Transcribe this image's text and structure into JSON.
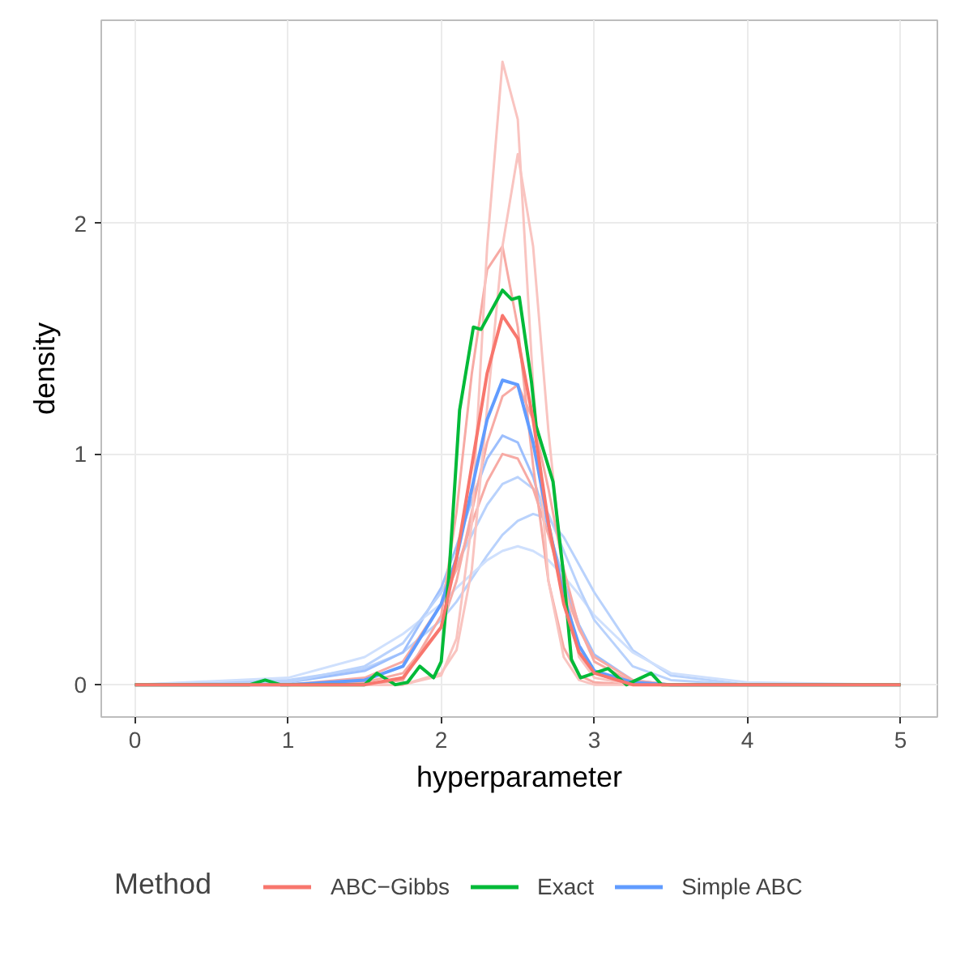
{
  "chart_data": {
    "type": "line",
    "xlabel": "hyperparameter",
    "ylabel": "density",
    "legend_title": "Method",
    "legend": "bottom",
    "grid": true,
    "xlim": [
      -0.22,
      5.24
    ],
    "ylim": [
      -0.14,
      2.88
    ],
    "xticks": [
      0,
      1,
      2,
      3,
      4,
      5
    ],
    "yticks": [
      0,
      1,
      2
    ],
    "x": [
      0,
      1,
      1.5,
      1.75,
      2,
      2.1,
      2.2,
      2.3,
      2.4,
      2.5,
      2.6,
      2.7,
      2.8,
      2.9,
      3,
      3.25,
      3.5,
      4,
      5
    ],
    "series": [
      {
        "name": "ABC−Gibbs",
        "color": "#f8766d",
        "values": [
          0,
          0,
          0,
          0.03,
          0.25,
          0.55,
          0.95,
          1.35,
          1.6,
          1.5,
          1.15,
          0.7,
          0.35,
          0.14,
          0.05,
          0,
          0,
          0,
          0
        ]
      },
      {
        "name": "Exact",
        "color": "#00ba38",
        "x": [
          0,
          0.75,
          0.85,
          0.95,
          1.5,
          1.58,
          1.7,
          1.78,
          1.86,
          1.95,
          2.0,
          2.05,
          2.12,
          2.21,
          2.26,
          2.4,
          2.46,
          2.51,
          2.59,
          2.62,
          2.73,
          2.8,
          2.85,
          2.91,
          3.09,
          3.21,
          3.37,
          3.44,
          5
        ],
        "values": [
          0,
          0,
          0.02,
          0,
          0,
          0.05,
          0,
          0.01,
          0.08,
          0.03,
          0.1,
          0.47,
          1.19,
          1.55,
          1.54,
          1.71,
          1.67,
          1.68,
          1.31,
          1.12,
          0.88,
          0.47,
          0.11,
          0.03,
          0.07,
          0,
          0.05,
          0,
          0
        ]
      },
      {
        "name": "Simple ABC",
        "color": "#619cff",
        "values": [
          0,
          0,
          0.02,
          0.08,
          0.35,
          0.55,
          0.85,
          1.15,
          1.32,
          1.3,
          1.05,
          0.7,
          0.38,
          0.17,
          0.06,
          0.01,
          0,
          0,
          0
        ]
      },
      {
        "color": "#f9c4c0",
        "values": [
          0,
          0,
          0,
          0,
          0.04,
          0.2,
          0.7,
          1.9,
          2.7,
          2.45,
          1.3,
          0.45,
          0.12,
          0.02,
          0,
          0,
          0,
          0,
          0
        ]
      },
      {
        "color": "#f9c4c0",
        "values": [
          0,
          0,
          0,
          0,
          0.05,
          0.15,
          0.5,
          1.2,
          1.9,
          2.3,
          1.9,
          1.1,
          0.45,
          0.12,
          0.03,
          0,
          0,
          0,
          0
        ]
      },
      {
        "color": "#f7aaa4",
        "values": [
          0,
          0,
          0.01,
          0.05,
          0.25,
          0.45,
          0.75,
          1.05,
          1.25,
          1.3,
          1.15,
          0.85,
          0.5,
          0.25,
          0.1,
          0.01,
          0,
          0,
          0
        ]
      },
      {
        "color": "#f7aaa4",
        "values": [
          0,
          0,
          0.03,
          0.1,
          0.35,
          0.5,
          0.7,
          0.88,
          1.0,
          0.98,
          0.85,
          0.65,
          0.42,
          0.24,
          0.12,
          0.02,
          0,
          0,
          0
        ]
      },
      {
        "color": "#f7aaa4",
        "values": [
          0,
          0,
          0,
          0.02,
          0.3,
          0.75,
          1.35,
          1.8,
          1.9,
          1.55,
          0.95,
          0.45,
          0.16,
          0.04,
          0.01,
          0,
          0,
          0,
          0
        ]
      },
      {
        "color": "#b9d2fc",
        "values": [
          0,
          0.01,
          0.08,
          0.18,
          0.4,
          0.52,
          0.65,
          0.78,
          0.87,
          0.9,
          0.85,
          0.74,
          0.58,
          0.42,
          0.28,
          0.08,
          0.02,
          0,
          0
        ]
      },
      {
        "color": "#cfe0fd",
        "values": [
          0,
          0.03,
          0.12,
          0.22,
          0.35,
          0.42,
          0.48,
          0.54,
          0.58,
          0.6,
          0.58,
          0.54,
          0.47,
          0.39,
          0.3,
          0.14,
          0.05,
          0.01,
          0
        ]
      },
      {
        "color": "#9dbffd",
        "values": [
          0,
          0.01,
          0.06,
          0.14,
          0.42,
          0.6,
          0.8,
          0.98,
          1.08,
          1.05,
          0.9,
          0.68,
          0.45,
          0.26,
          0.13,
          0.02,
          0,
          0,
          0
        ]
      },
      {
        "color": "#b9d2fc",
        "values": [
          0,
          0.02,
          0.07,
          0.14,
          0.28,
          0.36,
          0.46,
          0.56,
          0.65,
          0.71,
          0.74,
          0.72,
          0.64,
          0.52,
          0.4,
          0.15,
          0.04,
          0,
          0
        ]
      }
    ]
  }
}
